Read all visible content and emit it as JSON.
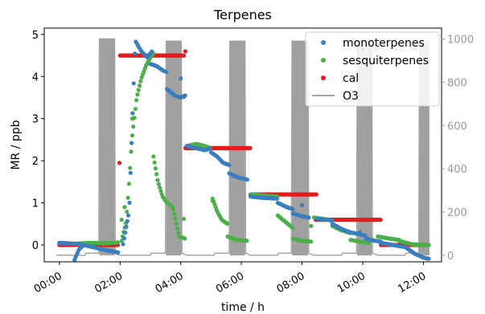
{
  "chart_data": {
    "type": "scatter",
    "title": "Terpenes",
    "xlabel": "time / h",
    "ylabel": "MR / ppb",
    "xlim": [
      -0.5,
      12.6
    ],
    "ylim": [
      -0.4,
      5.15
    ],
    "y2lim": [
      -30,
      1050
    ],
    "x_ticks": [
      0,
      2,
      4,
      6,
      8,
      10,
      12
    ],
    "x_tick_labels": [
      "00:00",
      "02:00",
      "04:00",
      "06:00",
      "08:00",
      "10:00",
      "12:00"
    ],
    "y_ticks": [
      0,
      1,
      2,
      3,
      4,
      5
    ],
    "y_tick_labels": [
      "0",
      "1",
      "2",
      "3",
      "4",
      "5"
    ],
    "y2_ticks": [
      0,
      200,
      400,
      600,
      800,
      1000
    ],
    "y2_tick_labels": [
      "0",
      "200",
      "400",
      "600",
      "800",
      "1000"
    ],
    "legend_position": "top-right",
    "colors": {
      "monoterpenes": "#3a7ebf",
      "sesquiterpenes": "#4daf4a",
      "cal": "#e41a1c",
      "O3": "#a6a6a6"
    },
    "series": [
      {
        "name": "monoterpenes",
        "axis": "left",
        "marker": "dot",
        "segments": [
          {
            "x0": 0.0,
            "x1": 0.7,
            "pts": [
              [
                0.0,
                0.05
              ],
              [
                0.7,
                0.02
              ]
            ]
          },
          {
            "x0": 0.5,
            "x1": 1.95,
            "pts": [
              [
                0.5,
                -0.35
              ],
              [
                0.65,
                -0.1
              ],
              [
                0.8,
                0.0
              ],
              [
                1.1,
                -0.05
              ],
              [
                1.5,
                -0.12
              ],
              [
                1.95,
                -0.18
              ]
            ]
          },
          {
            "x0": 2.1,
            "x1": 3.05,
            "pts": [
              [
                2.1,
                0.02
              ],
              [
                2.3,
                0.8
              ],
              [
                2.5,
                4.85
              ],
              [
                2.7,
                4.6
              ],
              [
                2.9,
                4.45
              ],
              [
                3.05,
                4.6
              ]
            ]
          },
          {
            "x0": 3.0,
            "x1": 3.55,
            "pts": [
              [
                3.0,
                4.3
              ],
              [
                3.2,
                4.25
              ],
              [
                3.4,
                4.15
              ],
              [
                3.55,
                4.1
              ]
            ]
          },
          {
            "x0": 3.55,
            "x1": 4.15,
            "pts": [
              [
                3.55,
                3.7
              ],
              [
                3.8,
                3.55
              ],
              [
                4.0,
                3.5
              ],
              [
                4.15,
                3.55
              ]
            ]
          },
          {
            "x0": 4.2,
            "x1": 5.0,
            "pts": [
              [
                4.2,
                2.35
              ],
              [
                4.5,
                2.3
              ],
              [
                4.8,
                2.25
              ],
              [
                5.0,
                2.3
              ]
            ]
          },
          {
            "x0": 5.0,
            "x1": 5.6,
            "pts": [
              [
                5.0,
                2.2
              ],
              [
                5.2,
                2.1
              ],
              [
                5.4,
                1.95
              ],
              [
                5.6,
                1.9
              ]
            ]
          },
          {
            "x0": 5.6,
            "x1": 6.2,
            "pts": [
              [
                5.6,
                1.7
              ],
              [
                5.9,
                1.6
              ],
              [
                6.2,
                1.55
              ]
            ]
          },
          {
            "x0": 6.3,
            "x1": 7.2,
            "pts": [
              [
                6.3,
                1.15
              ],
              [
                6.7,
                1.12
              ],
              [
                7.2,
                1.1
              ]
            ]
          },
          {
            "x0": 7.2,
            "x1": 7.7,
            "pts": [
              [
                7.2,
                1.0
              ],
              [
                7.5,
                0.9
              ],
              [
                7.7,
                0.85
              ]
            ]
          },
          {
            "x0": 7.7,
            "x1": 8.25,
            "pts": [
              [
                7.7,
                0.75
              ],
              [
                8.0,
                0.68
              ],
              [
                8.25,
                0.65
              ]
            ]
          },
          {
            "x0": 8.5,
            "x1": 9.0,
            "pts": [
              [
                8.5,
                0.62
              ],
              [
                8.8,
                0.6
              ],
              [
                9.0,
                0.58
              ]
            ]
          },
          {
            "x0": 9.0,
            "x1": 10.1,
            "pts": [
              [
                9.0,
                0.5
              ],
              [
                9.3,
                0.38
              ],
              [
                9.6,
                0.3
              ],
              [
                10.1,
                0.22
              ]
            ]
          },
          {
            "x0": 10.1,
            "x1": 10.6,
            "pts": [
              [
                10.1,
                0.15
              ],
              [
                10.4,
                0.1
              ],
              [
                10.6,
                0.08
              ]
            ]
          },
          {
            "x0": 10.6,
            "x1": 12.2,
            "pts": [
              [
                10.6,
                0.05
              ],
              [
                11.0,
                0.0
              ],
              [
                11.4,
                -0.05
              ],
              [
                11.7,
                -0.2
              ],
              [
                12.0,
                -0.3
              ],
              [
                12.2,
                -0.33
              ]
            ]
          }
        ],
        "outliers": [
          [
            4.0,
            3.95
          ],
          [
            4.05,
            3.52
          ],
          [
            8.0,
            0.95
          ],
          [
            9.9,
            0.3
          ]
        ]
      },
      {
        "name": "sesquiterpenes",
        "axis": "left",
        "marker": "dot",
        "segments": [
          {
            "x0": 0.0,
            "x1": 1.95,
            "pts": [
              [
                0.0,
                0.05
              ],
              [
                0.5,
                0.03
              ],
              [
                1.0,
                0.05
              ],
              [
                1.5,
                0.04
              ],
              [
                1.95,
                0.06
              ]
            ]
          },
          {
            "x0": 2.05,
            "x1": 3.1,
            "pts": [
              [
                2.05,
                0.1
              ],
              [
                2.2,
                0.55
              ],
              [
                2.3,
                1.5
              ],
              [
                2.4,
                2.6
              ],
              [
                2.55,
                3.5
              ],
              [
                2.7,
                3.95
              ],
              [
                2.85,
                4.25
              ],
              [
                3.0,
                4.45
              ],
              [
                3.1,
                4.55
              ]
            ]
          },
          {
            "x0": 3.1,
            "x1": 3.75,
            "pts": [
              [
                3.1,
                2.1
              ],
              [
                3.25,
                1.5
              ],
              [
                3.4,
                1.15
              ],
              [
                3.55,
                1.0
              ],
              [
                3.75,
                0.9
              ]
            ]
          },
          {
            "x0": 3.75,
            "x1": 4.15,
            "pts": [
              [
                3.75,
                0.85
              ],
              [
                3.95,
                0.2
              ],
              [
                4.15,
                0.15
              ]
            ]
          },
          {
            "x0": 4.2,
            "x1": 5.0,
            "pts": [
              [
                4.2,
                2.35
              ],
              [
                4.5,
                2.4
              ],
              [
                4.8,
                2.35
              ],
              [
                5.0,
                2.3
              ]
            ]
          },
          {
            "x0": 5.05,
            "x1": 5.55,
            "pts": [
              [
                5.05,
                1.1
              ],
              [
                5.2,
                0.8
              ],
              [
                5.35,
                0.6
              ],
              [
                5.55,
                0.5
              ]
            ]
          },
          {
            "x0": 5.55,
            "x1": 6.2,
            "pts": [
              [
                5.55,
                0.2
              ],
              [
                5.85,
                0.12
              ],
              [
                6.2,
                0.1
              ]
            ]
          },
          {
            "x0": 6.3,
            "x1": 7.2,
            "pts": [
              [
                6.3,
                1.2
              ],
              [
                6.7,
                1.18
              ],
              [
                7.2,
                1.15
              ]
            ]
          },
          {
            "x0": 7.2,
            "x1": 7.7,
            "pts": [
              [
                7.2,
                0.7
              ],
              [
                7.45,
                0.55
              ],
              [
                7.7,
                0.4
              ]
            ]
          },
          {
            "x0": 7.7,
            "x1": 8.3,
            "pts": [
              [
                7.7,
                0.15
              ],
              [
                8.0,
                0.1
              ],
              [
                8.3,
                0.08
              ]
            ]
          },
          {
            "x0": 8.4,
            "x1": 9.0,
            "pts": [
              [
                8.4,
                0.65
              ],
              [
                8.7,
                0.62
              ],
              [
                9.0,
                0.58
              ]
            ]
          },
          {
            "x0": 9.0,
            "x1": 9.6,
            "pts": [
              [
                9.0,
                0.45
              ],
              [
                9.3,
                0.35
              ],
              [
                9.6,
                0.28
              ]
            ]
          },
          {
            "x0": 9.6,
            "x1": 10.2,
            "pts": [
              [
                9.6,
                0.12
              ],
              [
                9.9,
                0.08
              ],
              [
                10.2,
                0.05
              ]
            ]
          },
          {
            "x0": 10.5,
            "x1": 11.2,
            "pts": [
              [
                10.5,
                0.2
              ],
              [
                10.9,
                0.15
              ],
              [
                11.2,
                0.12
              ]
            ]
          },
          {
            "x0": 11.2,
            "x1": 12.2,
            "pts": [
              [
                11.2,
                0.1
              ],
              [
                11.6,
                0.02
              ],
              [
                12.0,
                0.0
              ],
              [
                12.2,
                0.0
              ]
            ]
          }
        ],
        "outliers": [
          [
            2.05,
            0.6
          ],
          [
            2.15,
            0.9
          ],
          [
            4.1,
            0.62
          ],
          [
            5.05,
            1.05
          ],
          [
            8.3,
            0.45
          ],
          [
            2.4,
            3.0
          ]
        ]
      },
      {
        "name": "cal",
        "axis": "left",
        "marker": "dot",
        "segments": [
          {
            "x0": 0.0,
            "x1": 1.95,
            "pts": [
              [
                0.0,
                0.0
              ],
              [
                1.95,
                0.0
              ]
            ]
          },
          {
            "x0": 2.0,
            "x1": 4.1,
            "pts": [
              [
                2.0,
                4.5
              ],
              [
                4.1,
                4.5
              ]
            ]
          },
          {
            "x0": 4.15,
            "x1": 6.3,
            "pts": [
              [
                4.15,
                2.3
              ],
              [
                6.3,
                2.3
              ]
            ]
          },
          {
            "x0": 6.3,
            "x1": 8.5,
            "pts": [
              [
                6.3,
                1.2
              ],
              [
                8.5,
                1.2
              ]
            ]
          },
          {
            "x0": 8.45,
            "x1": 10.6,
            "pts": [
              [
                8.45,
                0.6
              ],
              [
                10.6,
                0.6
              ]
            ]
          },
          {
            "x0": 10.6,
            "x1": 12.1,
            "pts": [
              [
                10.6,
                0.0
              ],
              [
                12.1,
                0.0
              ]
            ]
          }
        ],
        "outliers": [
          [
            1.98,
            1.95
          ],
          [
            4.15,
            4.6
          ],
          [
            4.1,
            3.52
          ]
        ]
      },
      {
        "name": "O3",
        "axis": "right",
        "marker": "line",
        "points": [
          [
            -0.1,
            0
          ],
          [
            0.85,
            0
          ],
          [
            0.87,
            10
          ],
          [
            1.3,
            10
          ],
          [
            1.32,
            1000
          ],
          [
            1.82,
            1000
          ],
          [
            1.84,
            10
          ],
          [
            2.0,
            0
          ],
          [
            2.1,
            0
          ],
          [
            3.0,
            0
          ],
          [
            3.02,
            10
          ],
          [
            3.5,
            10
          ],
          [
            3.52,
            990
          ],
          [
            4.02,
            990
          ],
          [
            4.04,
            10
          ],
          [
            4.2,
            0
          ],
          [
            4.3,
            0
          ],
          [
            5.1,
            0
          ],
          [
            5.12,
            10
          ],
          [
            5.6,
            10
          ],
          [
            5.62,
            990
          ],
          [
            6.12,
            990
          ],
          [
            6.14,
            10
          ],
          [
            6.3,
            0
          ],
          [
            6.4,
            0
          ],
          [
            7.2,
            0
          ],
          [
            7.22,
            10
          ],
          [
            7.65,
            10
          ],
          [
            7.67,
            990
          ],
          [
            8.2,
            990
          ],
          [
            8.22,
            10
          ],
          [
            8.4,
            0
          ],
          [
            8.5,
            0
          ],
          [
            9.3,
            0
          ],
          [
            9.32,
            10
          ],
          [
            9.8,
            10
          ],
          [
            9.82,
            990
          ],
          [
            10.3,
            990
          ],
          [
            10.32,
            10
          ],
          [
            10.5,
            0
          ],
          [
            10.6,
            0
          ],
          [
            11.4,
            0
          ],
          [
            11.42,
            10
          ],
          [
            11.85,
            10
          ],
          [
            11.87,
            990
          ],
          [
            12.2,
            990
          ]
        ]
      }
    ]
  }
}
